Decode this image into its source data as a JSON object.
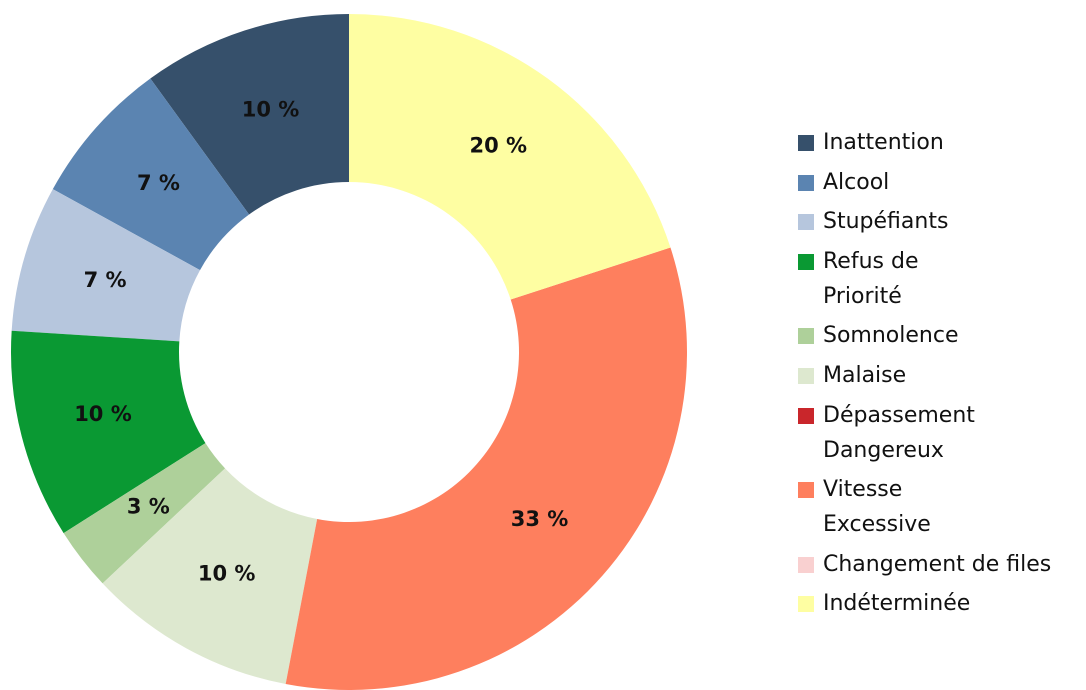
{
  "chart_data": {
    "type": "donut",
    "categories": [
      "Inattention",
      "Alcool",
      "Stupéfiants",
      "Refus de\nPriorité",
      "Somnolence",
      "Malaise",
      "Dépassement\nDangereux",
      "Vitesse\nExcessive",
      "Changement de files",
      "Indéterminée"
    ],
    "values": [
      10,
      7,
      7,
      10,
      3,
      10,
      0,
      33,
      0,
      20
    ],
    "value_labels": [
      "10 %",
      "7 %",
      "7 %",
      "10 %",
      "3 %",
      "10 %",
      null,
      "33 %",
      null,
      "20 %"
    ],
    "colors": [
      "#36506b",
      "#5b84b1",
      "#b6c6dd",
      "#0a9933",
      "#aed09a",
      "#dde8cf",
      "#c9262b",
      "#fe7f5e",
      "#f9d0d0",
      "#fefea2"
    ],
    "legend": "right"
  }
}
